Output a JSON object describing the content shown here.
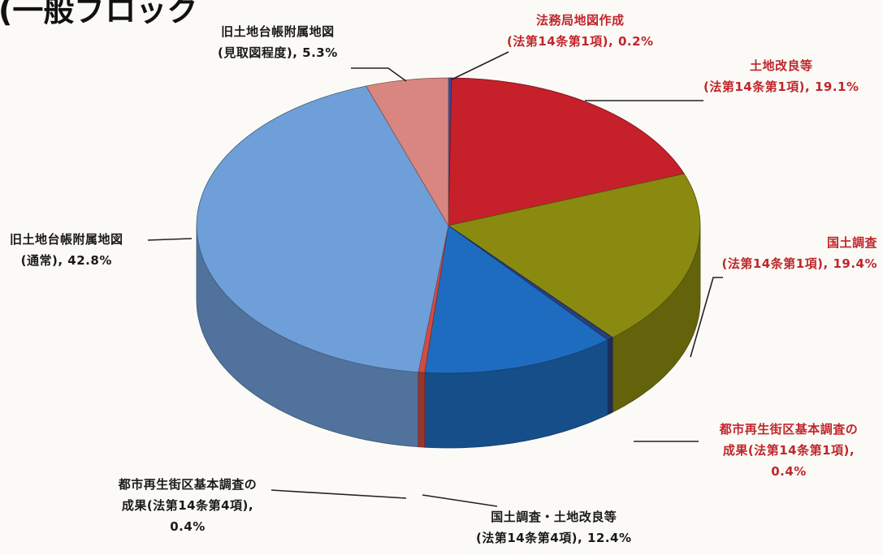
{
  "page_title": "(一般ブロック",
  "chart_data": {
    "type": "pie",
    "title": "",
    "slices": [
      {
        "name": "法務局地図作成",
        "detail": "(法第14条第1項), 0.2%",
        "value": 0.2,
        "color": "#2b4fa8",
        "label_color": "#c0262c"
      },
      {
        "name": "土地改良等",
        "detail": "(法第14条第1項), 19.1%",
        "value": 19.1,
        "color": "#c6202a",
        "label_color": "#c0262c"
      },
      {
        "name": "国土調査",
        "detail": "(法第14条第1項), 19.4%",
        "value": 19.4,
        "color": "#8a8a10",
        "label_color": "#c0262c"
      },
      {
        "name": "都市再生街区基本調査の",
        "name2": "成果(法第14条第1項),",
        "detail": "0.4%",
        "value": 0.4,
        "color": "#2a3f7a",
        "label_color": "#c0262c"
      },
      {
        "name": "国土調査・土地改良等",
        "detail": "(法第14条第4項), 12.4%",
        "value": 12.4,
        "color": "#1e6cc0",
        "label_color": "#1a1a1a"
      },
      {
        "name": "都市再生街区基本調査の",
        "name2": "成果(法第14条第4項),",
        "detail": "0.4%",
        "value": 0.4,
        "color": "#d64a3e",
        "label_color": "#1a1a1a"
      },
      {
        "name": "旧土地台帳附属地図",
        "detail": "(通常), 42.8%",
        "value": 42.8,
        "color": "#6f9fd8",
        "label_color": "#1a1a1a"
      },
      {
        "name": "旧土地台帳附属地図",
        "detail": "(見取図程度), 5.3%",
        "value": 5.3,
        "color": "#d98680",
        "label_color": "#1a1a1a"
      }
    ]
  }
}
